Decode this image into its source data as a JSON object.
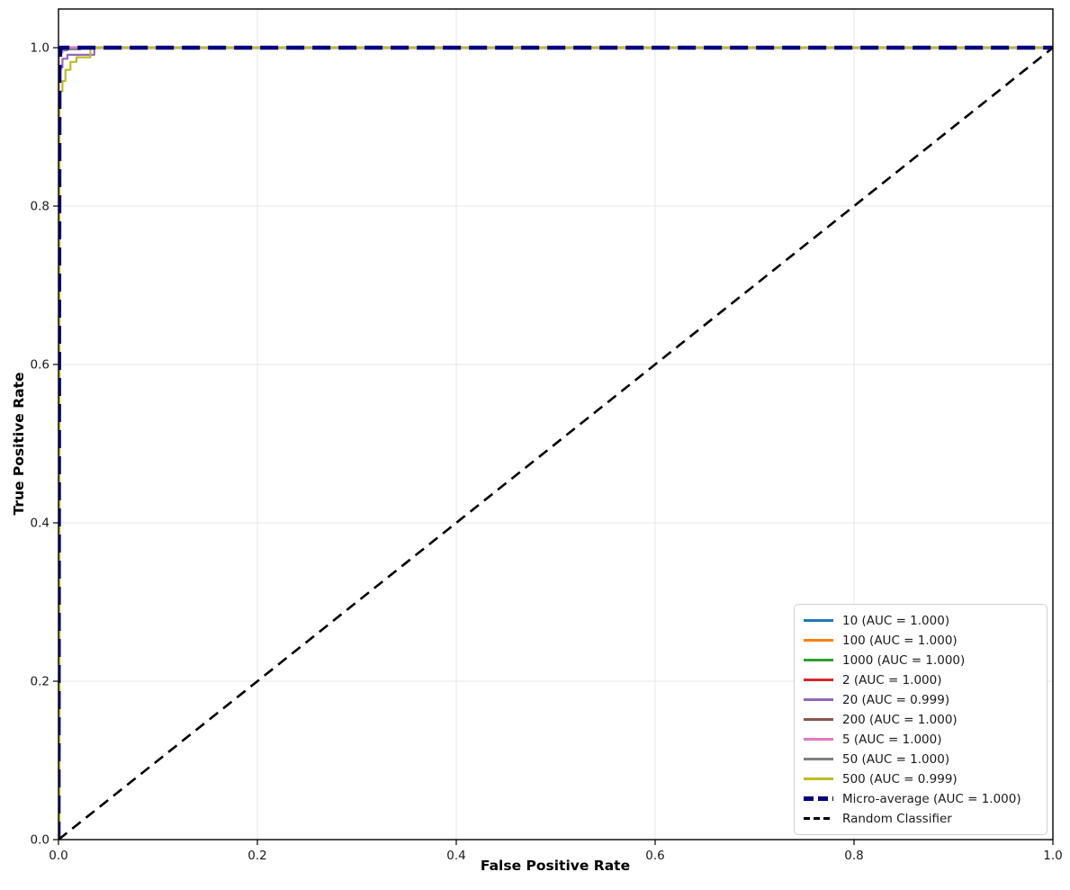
{
  "chart_data": {
    "type": "line",
    "subtype": "roc-curves",
    "title": "",
    "xlabel": "False Positive Rate",
    "ylabel": "True Positive Rate",
    "xlim": [
      0.0,
      1.0
    ],
    "ylim": [
      0.0,
      1.05
    ],
    "grid": true,
    "grid_color": "#e7e7e7",
    "legend_position": "lower right",
    "x_ticks": [
      {
        "v": 0.0,
        "label": "0.0"
      },
      {
        "v": 0.2,
        "label": "0.2"
      },
      {
        "v": 0.4,
        "label": "0.4"
      },
      {
        "v": 0.6,
        "label": "0.6"
      },
      {
        "v": 0.8,
        "label": "0.8"
      },
      {
        "v": 1.0,
        "label": "1.0"
      }
    ],
    "y_ticks": [
      {
        "v": 0.0,
        "label": "0.0"
      },
      {
        "v": 0.2,
        "label": "0.2"
      },
      {
        "v": 0.4,
        "label": "0.4"
      },
      {
        "v": 0.6,
        "label": "0.6"
      },
      {
        "v": 0.8,
        "label": "0.8"
      },
      {
        "v": 1.0,
        "label": "1.0"
      }
    ],
    "series": [
      {
        "name": "10",
        "auc": "1.000",
        "legend_label": "10 (AUC = 1.000)",
        "color": "#1f77b4",
        "lw": 2.2,
        "dash": null,
        "points": [
          [
            0,
            0
          ],
          [
            0,
            1
          ],
          [
            1,
            1
          ]
        ]
      },
      {
        "name": "100",
        "auc": "1.000",
        "legend_label": "100 (AUC = 1.000)",
        "color": "#ff7f0e",
        "lw": 2.2,
        "dash": null,
        "points": [
          [
            0,
            0
          ],
          [
            0,
            1
          ],
          [
            1,
            1
          ]
        ]
      },
      {
        "name": "1000",
        "auc": "1.000",
        "legend_label": "1000 (AUC = 1.000)",
        "color": "#2ca02c",
        "lw": 2.2,
        "dash": null,
        "points": [
          [
            0,
            0
          ],
          [
            0,
            1
          ],
          [
            1,
            1
          ]
        ]
      },
      {
        "name": "2",
        "auc": "1.000",
        "legend_label": "2 (AUC = 1.000)",
        "color": "#d62728",
        "lw": 2.2,
        "dash": null,
        "points": [
          [
            0,
            0
          ],
          [
            0,
            1
          ],
          [
            1,
            1
          ]
        ]
      },
      {
        "name": "20",
        "auc": "0.999",
        "legend_label": "20 (AUC = 0.999)",
        "color": "#9467bd",
        "lw": 2.2,
        "dash": null,
        "points": [
          [
            0,
            0
          ],
          [
            0,
            0.975
          ],
          [
            0.004,
            0.975
          ],
          [
            0.004,
            0.986
          ],
          [
            0.009,
            0.986
          ],
          [
            0.009,
            0.991
          ],
          [
            0.036,
            0.991
          ],
          [
            0.036,
            1
          ],
          [
            1,
            1
          ]
        ]
      },
      {
        "name": "200",
        "auc": "1.000",
        "legend_label": "200 (AUC = 1.000)",
        "color": "#8c564b",
        "lw": 2.2,
        "dash": null,
        "points": [
          [
            0,
            0
          ],
          [
            0,
            0.997
          ],
          [
            0.009,
            0.997
          ],
          [
            0.009,
            1
          ],
          [
            1,
            1
          ]
        ]
      },
      {
        "name": "5",
        "auc": "1.000",
        "legend_label": "5 (AUC = 1.000)",
        "color": "#e377c2",
        "lw": 2.2,
        "dash": null,
        "points": [
          [
            0,
            0
          ],
          [
            0,
            0.994
          ],
          [
            0.004,
            0.994
          ],
          [
            0.004,
            0.998
          ],
          [
            0.009,
            0.998
          ],
          [
            0.009,
            1
          ],
          [
            1,
            1
          ]
        ]
      },
      {
        "name": "50",
        "auc": "1.000",
        "legend_label": "50 (AUC = 1.000)",
        "color": "#7f7f7f",
        "lw": 2.2,
        "dash": null,
        "points": [
          [
            0,
            0
          ],
          [
            0,
            0.998
          ],
          [
            0.022,
            0.998
          ],
          [
            0.022,
            1
          ],
          [
            1,
            1
          ]
        ]
      },
      {
        "name": "500",
        "auc": "0.999",
        "legend_label": "500 (AUC = 0.999)",
        "color": "#bcbd22",
        "lw": 2.2,
        "dash": null,
        "points": [
          [
            0.001,
            0
          ],
          [
            0.001,
            0.945
          ],
          [
            0.004,
            0.945
          ],
          [
            0.004,
            0.958
          ],
          [
            0.007,
            0.958
          ],
          [
            0.007,
            0.972
          ],
          [
            0.012,
            0.972
          ],
          [
            0.012,
            0.982
          ],
          [
            0.018,
            0.982
          ],
          [
            0.018,
            0.988
          ],
          [
            0.032,
            0.988
          ],
          [
            0.032,
            1
          ],
          [
            1,
            1
          ]
        ]
      },
      {
        "name": "Micro-average",
        "auc": "1.000",
        "legend_label": "Micro-average (AUC = 1.000)",
        "color": "#000080",
        "lw": 4.5,
        "dash": [
          20,
          9
        ],
        "points": [
          [
            0,
            0
          ],
          [
            0.001,
            0.97
          ],
          [
            0.002,
            1
          ],
          [
            1,
            1
          ]
        ]
      },
      {
        "name": "Random Classifier",
        "auc": null,
        "legend_label": "Random Classifier",
        "color": "#000000",
        "lw": 2.6,
        "dash": [
          12,
          7.5
        ],
        "points": [
          [
            0,
            0
          ],
          [
            1,
            1
          ]
        ]
      }
    ]
  }
}
